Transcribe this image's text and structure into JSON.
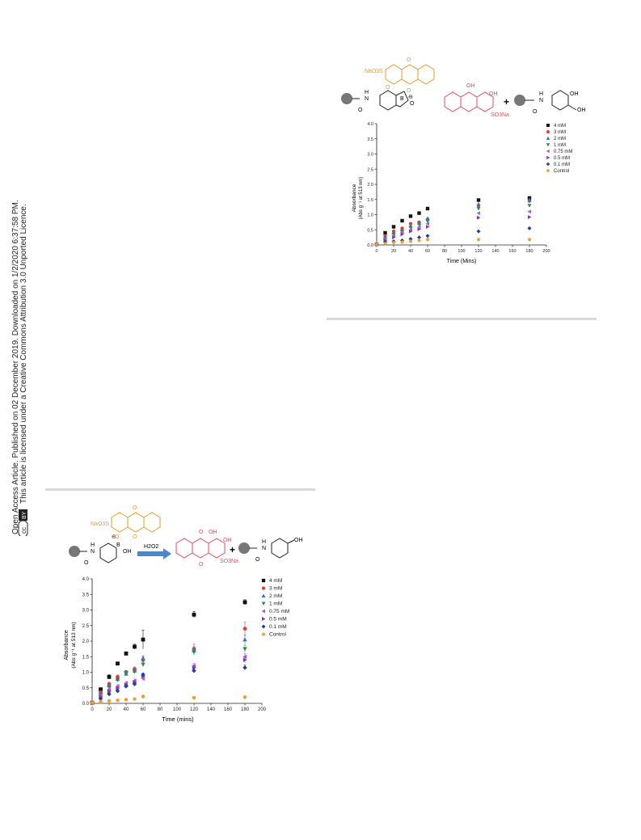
{
  "sidebar": {
    "cc_badge": "cc",
    "by_badge": "BY",
    "line1": "Open Access Article. Published on 02 December 2019. Downloaded on 1/2/2020 6:37:58 PM.",
    "line2": "This article is licensed under a Creative Commons Attribution 3.0 Unported Licence."
  },
  "colors": {
    "series": [
      "#111111",
      "#e8383d",
      "#3a6fc4",
      "#2a8c55",
      "#b45cc4",
      "#7b3fa8",
      "#24408e",
      "#f39a2c"
    ],
    "orange_dye": "#e89a2b",
    "red_dye": "#e84a5a",
    "arrow": "#4f86c6",
    "rule": "#d9d9d9"
  },
  "scheme_top": {
    "complex_label": "NaO3S",
    "product_label": "SO3Na",
    "oh_labels": [
      "OH",
      "OH",
      "OH"
    ],
    "o_labels": [
      "O",
      "O",
      "O",
      "O"
    ],
    "amide_labels": [
      "O",
      "H",
      "N",
      "O",
      "H",
      "N"
    ],
    "boron_label": "B",
    "charge_label": "⊖",
    "plus": "+"
  },
  "scheme_bottom": {
    "reagent_label": "NaO3S",
    "boron_label": "B",
    "boron_oh": "OH",
    "charge_label": "⊖",
    "arrow_label": "H2O2",
    "product_label": "SO3Na",
    "oh_labels": [
      "OH",
      "OH"
    ],
    "o_labels": [
      "O",
      "O",
      "O",
      "O",
      "O"
    ],
    "amide_labels": [
      "O",
      "H",
      "N",
      "O",
      "H",
      "N"
    ],
    "plus": "+"
  },
  "chart_data": [
    {
      "type": "scatter",
      "title": "",
      "xlabel": "Time (Mins)",
      "ylabel_line1": "Absorbance",
      "ylabel_line2": "(Abs g⁻¹ at 513 nm)",
      "xlim": [
        0,
        200
      ],
      "ylim": [
        0,
        4.0
      ],
      "x_ticks": [
        "0",
        "20",
        "40",
        "60",
        "80",
        "100",
        "120",
        "140",
        "160",
        "180",
        "200"
      ],
      "y_ticks": [
        "0.0",
        "0.5",
        "1.0",
        "1.5",
        "2.0",
        "2.5",
        "3.0",
        "3.5",
        "4.0"
      ],
      "x": [
        0,
        10,
        20,
        30,
        40,
        50,
        60,
        120,
        180
      ],
      "legend_position": "top-right",
      "series": [
        {
          "name": "4 mM",
          "marker": "square",
          "values": [
            0.02,
            0.4,
            0.6,
            0.8,
            0.95,
            1.05,
            1.2,
            1.48,
            1.55
          ]
        },
        {
          "name": "3 mM",
          "marker": "circle",
          "values": [
            0.02,
            0.3,
            0.45,
            0.55,
            0.7,
            0.75,
            0.85,
            1.3,
            1.45
          ]
        },
        {
          "name": "2 mM",
          "marker": "triangle-up",
          "values": [
            0.02,
            0.25,
            0.4,
            0.5,
            0.62,
            0.72,
            0.88,
            1.35,
            1.5
          ]
        },
        {
          "name": "1 mM",
          "marker": "triangle-down",
          "values": [
            0.02,
            0.2,
            0.35,
            0.45,
            0.58,
            0.68,
            0.78,
            1.2,
            1.3
          ]
        },
        {
          "name": "0.75 mM",
          "marker": "triangle-left",
          "values": [
            0.02,
            0.18,
            0.3,
            0.42,
            0.5,
            0.6,
            0.7,
            1.05,
            1.1
          ]
        },
        {
          "name": "0.5 mM",
          "marker": "triangle-right",
          "values": [
            0.02,
            0.15,
            0.25,
            0.35,
            0.45,
            0.52,
            0.6,
            0.9,
            0.92
          ]
        },
        {
          "name": "0.1 mM",
          "marker": "diamond",
          "values": [
            0.02,
            0.1,
            0.12,
            0.15,
            0.2,
            0.25,
            0.3,
            0.45,
            0.55
          ]
        },
        {
          "name": "Control",
          "marker": "hexagon",
          "values": [
            0.02,
            0.05,
            0.08,
            0.1,
            0.12,
            0.15,
            0.18,
            0.18,
            0.18
          ]
        }
      ]
    },
    {
      "type": "scatter",
      "title": "",
      "xlabel": "Time (mins)",
      "ylabel_line1": "Absorbance",
      "ylabel_line2": "(Abs g⁻¹ at 513 nm)",
      "xlim": [
        0,
        200
      ],
      "ylim": [
        0,
        4.0
      ],
      "x_ticks": [
        "0",
        "20",
        "40",
        "60",
        "80",
        "100",
        "120",
        "140",
        "160",
        "180",
        "200"
      ],
      "y_ticks": [
        "0.0",
        "0.5",
        "1.0",
        "1.5",
        "2.0",
        "2.5",
        "3.0",
        "3.5",
        "4.0"
      ],
      "x": [
        0,
        10,
        20,
        30,
        40,
        50,
        60,
        120,
        180
      ],
      "legend_position": "top-right",
      "series": [
        {
          "name": "4 mM",
          "marker": "square",
          "values": [
            0.02,
            0.45,
            0.85,
            1.28,
            1.6,
            1.82,
            2.05,
            2.85,
            3.25
          ],
          "errors": [
            0.02,
            0.05,
            0.07,
            0.05,
            0.06,
            0.08,
            0.3,
            0.1,
            0.08
          ]
        },
        {
          "name": "3 mM",
          "marker": "circle",
          "values": [
            0.02,
            0.35,
            0.62,
            0.85,
            1.0,
            1.1,
            1.4,
            1.75,
            2.4
          ],
          "errors": [
            0.02,
            0.05,
            0.06,
            0.06,
            0.06,
            0.07,
            0.1,
            0.15,
            0.2
          ]
        },
        {
          "name": "2 mM",
          "marker": "triangle-up",
          "values": [
            0.02,
            0.32,
            0.58,
            0.78,
            0.95,
            1.05,
            1.45,
            1.7,
            2.05
          ],
          "errors": [
            0.02,
            0.05,
            0.05,
            0.06,
            0.06,
            0.06,
            0.08,
            0.12,
            0.15
          ]
        },
        {
          "name": "1 mM",
          "marker": "triangle-down",
          "values": [
            0.02,
            0.28,
            0.52,
            0.75,
            0.98,
            1.02,
            1.25,
            1.65,
            1.75
          ],
          "errors": [
            0.02,
            0.04,
            0.05,
            0.05,
            0.06,
            0.06,
            0.08,
            0.1,
            0.12
          ]
        },
        {
          "name": "0.75 mM",
          "marker": "triangle-left",
          "values": [
            0.02,
            0.25,
            0.45,
            0.55,
            0.65,
            0.72,
            0.8,
            1.2,
            1.5
          ],
          "errors": [
            0.02,
            0.04,
            0.05,
            0.05,
            0.05,
            0.06,
            0.07,
            0.08,
            0.1
          ]
        },
        {
          "name": "0.5 mM",
          "marker": "triangle-right",
          "values": [
            0.02,
            0.2,
            0.38,
            0.48,
            0.58,
            0.68,
            0.88,
            1.15,
            1.4
          ],
          "errors": [
            0.02,
            0.04,
            0.04,
            0.05,
            0.05,
            0.05,
            0.06,
            0.08,
            0.1
          ]
        },
        {
          "name": "0.1 mM",
          "marker": "diamond",
          "values": [
            0.02,
            0.15,
            0.3,
            0.4,
            0.55,
            0.62,
            0.92,
            1.05,
            1.15
          ],
          "errors": [
            0.02,
            0.03,
            0.04,
            0.04,
            0.05,
            0.05,
            0.06,
            0.07,
            0.08
          ]
        },
        {
          "name": "Control",
          "marker": "hexagon",
          "values": [
            0.02,
            0.05,
            0.08,
            0.1,
            0.12,
            0.14,
            0.22,
            0.18,
            0.2
          ],
          "errors": [
            0.01,
            0.02,
            0.02,
            0.02,
            0.02,
            0.02,
            0.05,
            0.03,
            0.03
          ]
        }
      ]
    }
  ]
}
